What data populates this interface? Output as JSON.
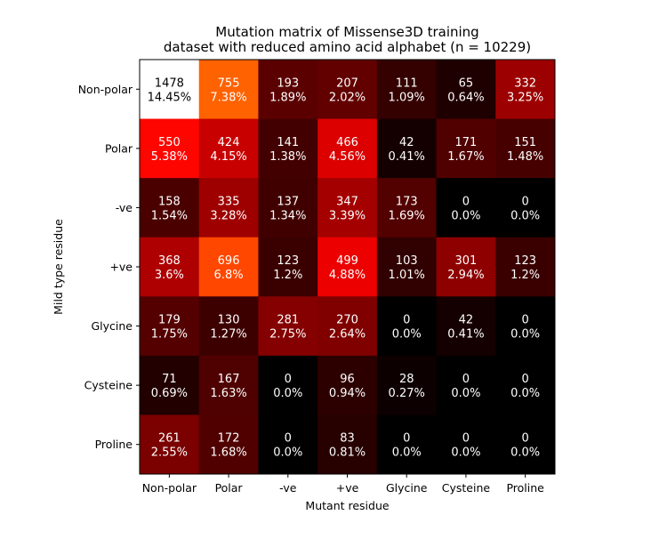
{
  "chart_data": {
    "type": "heatmap",
    "title_line1": "Mutation matrix of Missense3D training",
    "title_line2": "dataset with reduced amino acid alphabet (n = 10229)",
    "xlabel": "Mutant residue",
    "ylabel": "Mild type residue",
    "x_categories": [
      "Non-polar",
      "Polar",
      "-ve",
      "+ve",
      "Glycine",
      "Cysteine",
      "Proline"
    ],
    "y_categories": [
      "Non-polar",
      "Polar",
      "-ve",
      "+ve",
      "Glycine",
      "Cysteine",
      "Proline"
    ],
    "colormap": "hot",
    "values": [
      [
        1478,
        755,
        193,
        207,
        111,
        65,
        332
      ],
      [
        550,
        424,
        141,
        466,
        42,
        171,
        151
      ],
      [
        158,
        335,
        137,
        347,
        173,
        0,
        0
      ],
      [
        368,
        696,
        123,
        499,
        103,
        301,
        123
      ],
      [
        179,
        130,
        281,
        270,
        0,
        42,
        0
      ],
      [
        71,
        167,
        0,
        96,
        28,
        0,
        0
      ],
      [
        261,
        172,
        0,
        83,
        0,
        0,
        0
      ]
    ],
    "percent_labels": [
      [
        "14.45%",
        "7.38%",
        "1.89%",
        "2.02%",
        "1.09%",
        "0.64%",
        "3.25%"
      ],
      [
        "5.38%",
        "4.15%",
        "1.38%",
        "4.56%",
        "0.41%",
        "1.67%",
        "1.48%"
      ],
      [
        "1.54%",
        "3.28%",
        "1.34%",
        "3.39%",
        "1.69%",
        "0.0%",
        "0.0%"
      ],
      [
        "3.6%",
        "6.8%",
        "1.2%",
        "4.88%",
        "1.01%",
        "2.94%",
        "1.2%"
      ],
      [
        "1.75%",
        "1.27%",
        "2.75%",
        "2.64%",
        "0.0%",
        "0.41%",
        "0.0%"
      ],
      [
        "0.69%",
        "1.63%",
        "0.0%",
        "0.94%",
        "0.27%",
        "0.0%",
        "0.0%"
      ],
      [
        "2.55%",
        "1.68%",
        "0.0%",
        "0.81%",
        "0.0%",
        "0.0%",
        "0.0%"
      ]
    ]
  }
}
